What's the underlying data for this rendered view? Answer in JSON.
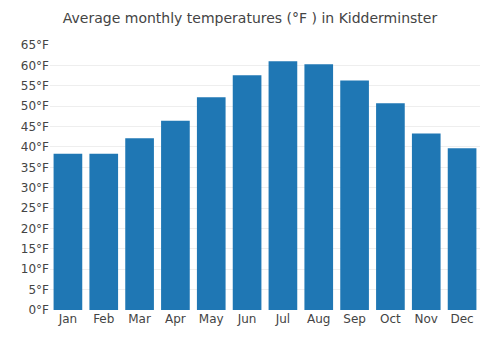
{
  "chart_data": {
    "type": "bar",
    "title": "Average monthly temperatures (°F ) in Kidderminster",
    "categories": [
      "Jan",
      "Feb",
      "Mar",
      "Apr",
      "May",
      "Jun",
      "Jul",
      "Aug",
      "Sep",
      "Oct",
      "Nov",
      "Dec"
    ],
    "values": [
      38.3,
      38.3,
      42.1,
      46.4,
      52.2,
      57.6,
      61.0,
      60.3,
      56.3,
      50.7,
      43.3,
      39.7
    ],
    "ylim": [
      0,
      65
    ],
    "yticks": [
      {
        "value": 0,
        "label": "0°F"
      },
      {
        "value": 5,
        "label": "5°F"
      },
      {
        "value": 10,
        "label": "10°F"
      },
      {
        "value": 15,
        "label": "15°F"
      },
      {
        "value": 20,
        "label": "20°F"
      },
      {
        "value": 25,
        "label": "25°F"
      },
      {
        "value": 30,
        "label": "30°F"
      },
      {
        "value": 35,
        "label": "35°F"
      },
      {
        "value": 40,
        "label": "40°F"
      },
      {
        "value": 45,
        "label": "45°F"
      },
      {
        "value": 50,
        "label": "50°F"
      },
      {
        "value": 55,
        "label": "55°F"
      },
      {
        "value": 60,
        "label": "60°F"
      },
      {
        "value": 65,
        "label": "65°F"
      }
    ],
    "grid": true
  }
}
